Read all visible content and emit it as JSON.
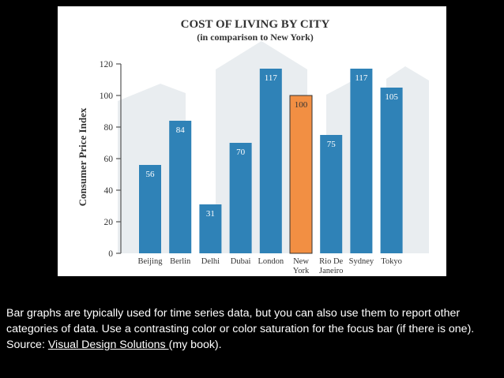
{
  "chart_data": {
    "type": "bar",
    "title": "COST OF LIVING BY CITY",
    "subtitle": "(in comparison to New York)",
    "xlabel": "",
    "ylabel": "Consumer Price Index",
    "ylim": [
      0,
      120
    ],
    "yticks": [
      "0",
      "20",
      "40",
      "60",
      "80",
      "100",
      "120"
    ],
    "grid": false,
    "categories": [
      {
        "line1": "Beijing",
        "line2": ""
      },
      {
        "line1": "Berlin",
        "line2": ""
      },
      {
        "line1": "Delhi",
        "line2": ""
      },
      {
        "line1": "Dubai",
        "line2": ""
      },
      {
        "line1": "London",
        "line2": ""
      },
      {
        "line1": "New",
        "line2": "York"
      },
      {
        "line1": "Rio De",
        "line2": "Janeiro"
      },
      {
        "line1": "Sydney",
        "line2": ""
      },
      {
        "line1": "Tokyo",
        "line2": ""
      }
    ],
    "values": [
      56,
      84,
      31,
      70,
      117,
      100,
      75,
      117,
      105
    ],
    "value_labels": [
      "56",
      "84",
      "31",
      "70",
      "117",
      "100",
      "75",
      "117",
      "105"
    ],
    "focus_index": 5,
    "colors": {
      "bar": "#2f82b7",
      "focus": "#f28f43",
      "label_on_bar": "#ffffff",
      "label_on_focus": "#333333",
      "axis": "#555555",
      "text": "#333333",
      "backdrop": "#dfe5ea"
    }
  },
  "caption": {
    "before_link": "Bar graphs are typically used for time series data, but you can also use them to report other categories of data. Use a contrasting color or color saturation for the focus bar (if there is one). Source: ",
    "link_text": "Visual Design Solutions ",
    "after_link": "(my book)."
  }
}
